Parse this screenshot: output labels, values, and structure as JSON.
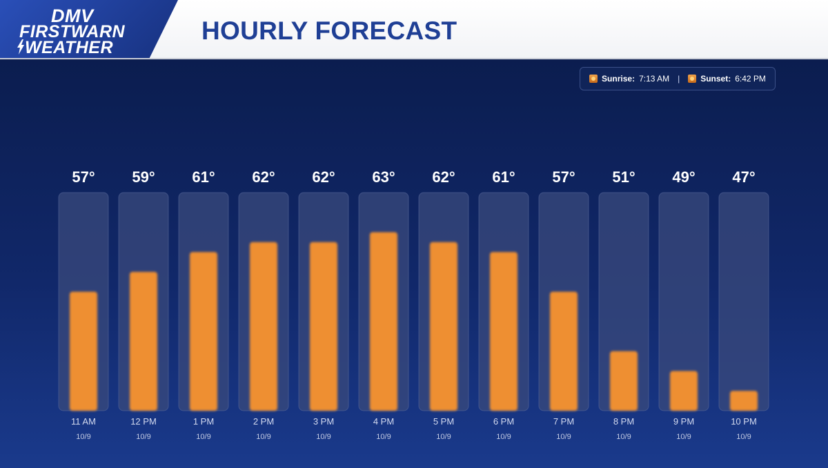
{
  "header": {
    "logo_line1": "DMV",
    "logo_line2": "FIRSTWARN",
    "logo_line3": "WEATHER",
    "title": "HOURLY FORECAST"
  },
  "sun": {
    "sunrise_label": "Sunrise:",
    "sunrise_time": "7:13 AM",
    "separator": "|",
    "sunset_label": "Sunset:",
    "sunset_time": "6:42 PM",
    "icon_sunrise": "sunrise-icon",
    "icon_sunset": "sunset-icon"
  },
  "colors": {
    "bar": "#ee8f33",
    "track": "#3a4a7c",
    "header_title": "#1f3f95",
    "background": "#102566"
  },
  "chart_data": {
    "type": "bar",
    "categories": [
      "11 AM",
      "12 PM",
      "1 PM",
      "2 PM",
      "3 PM",
      "4 PM",
      "5 PM",
      "6 PM",
      "7 PM",
      "8 PM",
      "9 PM",
      "10 PM"
    ],
    "dates": [
      "10/9",
      "10/9",
      "10/9",
      "10/9",
      "10/9",
      "10/9",
      "10/9",
      "10/9",
      "10/9",
      "10/9",
      "10/9",
      "10/9"
    ],
    "values": [
      57,
      59,
      61,
      62,
      62,
      63,
      62,
      61,
      57,
      51,
      49,
      47
    ],
    "value_labels": [
      "57°",
      "59°",
      "61°",
      "62°",
      "62°",
      "63°",
      "62°",
      "61°",
      "57°",
      "51°",
      "49°",
      "47°"
    ],
    "title": "HOURLY FORECAST",
    "xlabel": "",
    "ylabel": "",
    "ylim": [
      45,
      64
    ],
    "grid": false,
    "legend": "none"
  }
}
